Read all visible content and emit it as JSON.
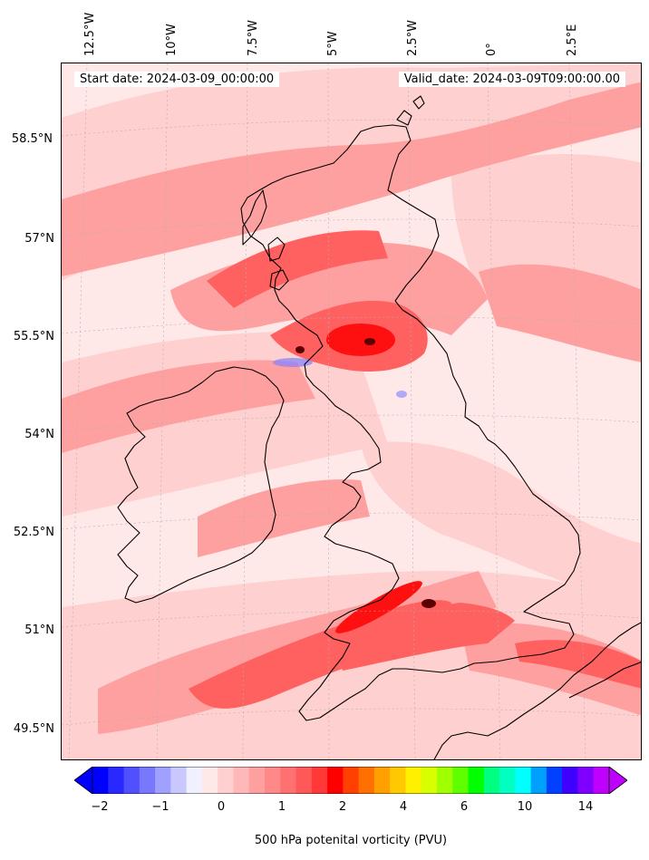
{
  "header": {
    "start_date": "Start date: 2024-03-09_00:00:00",
    "valid_date": "Valid_date: 2024-03-09T09:00:00.00"
  },
  "longitude_labels": [
    "12.5°W",
    "10°W",
    "7.5°W",
    "5°W",
    "2.5°W",
    "0°",
    "2.5°E"
  ],
  "latitude_labels": [
    "58.5°N",
    "57°N",
    "55.5°N",
    "54°N",
    "52.5°N",
    "51°N",
    "49.5°N"
  ],
  "colorbar": {
    "label": "500 hPa potenital vorticity (PVU)",
    "ticks": [
      "−2",
      "−1",
      "0",
      "1",
      "2",
      "4",
      "6",
      "10",
      "14"
    ],
    "colors": [
      "#0000ff",
      "#2828ff",
      "#5050ff",
      "#7878ff",
      "#a0a0ff",
      "#c8c8ff",
      "#f0f0ff",
      "#ffe8e8",
      "#ffd0d0",
      "#ffb8b8",
      "#ffa0a0",
      "#ff8888",
      "#ff7070",
      "#ff5858",
      "#ff3838",
      "#ff0000",
      "#ff4000",
      "#ff7000",
      "#ffa000",
      "#ffc800",
      "#fff000",
      "#d8ff00",
      "#a0ff00",
      "#60ff00",
      "#00ff00",
      "#00ff80",
      "#00ffc0",
      "#00ffff",
      "#00a0ff",
      "#0040ff",
      "#4000ff",
      "#8000ff",
      "#c000ff"
    ]
  },
  "map": {
    "field": "500 hPa potential vorticity",
    "units": "PVU",
    "base_color": "#ffe8e8",
    "band_light": "#ffd0d0",
    "band_mid": "#ffa0a0",
    "band_strong": "#ff6060",
    "band_max": "#ff1010",
    "negative_color": "#8080ff",
    "coastline_color": "#000000"
  }
}
